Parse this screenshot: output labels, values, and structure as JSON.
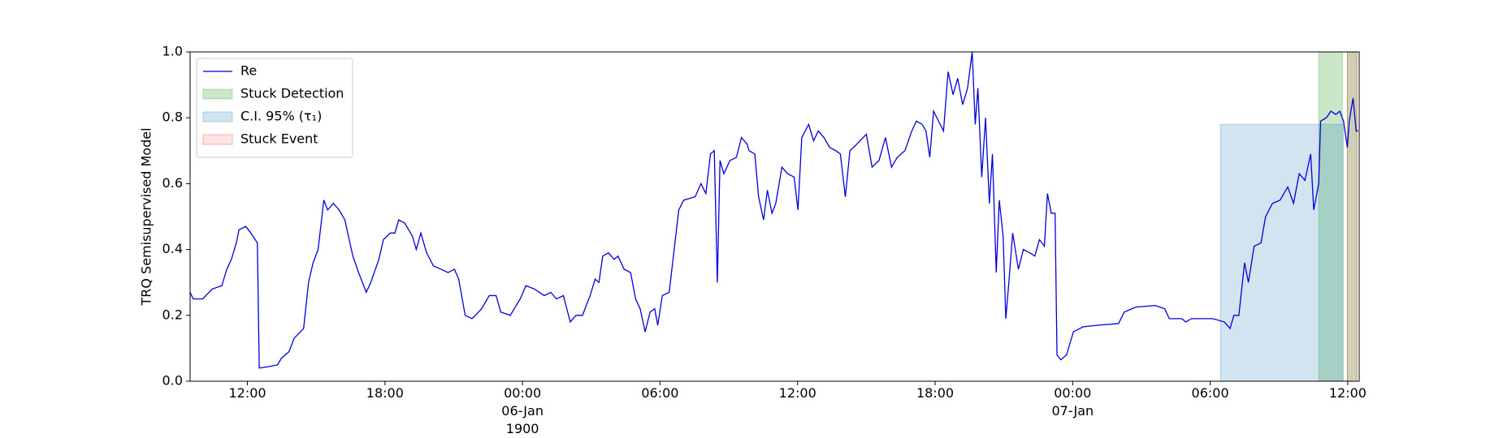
{
  "chart_data": {
    "type": "line",
    "ylabel": "TRQ Semisupervised Model",
    "xlim": [
      "1900-01-05T09:30",
      "1900-01-07T12:30"
    ],
    "ylim": [
      0,
      1
    ],
    "yticks": [
      {
        "value": 0,
        "label": "0.0"
      },
      0.2,
      0.4,
      0.6,
      0.8,
      {
        "value": 1,
        "label": "1.0"
      }
    ],
    "xticks": [
      {
        "value": "1900-01-05T12:00",
        "label": "12:00"
      },
      {
        "value": "1900-01-05T18:00",
        "label": "18:00"
      },
      {
        "value": "1900-01-06T00:00",
        "label": "00:00\n06-Jan\n1900"
      },
      {
        "value": "1900-01-06T06:00",
        "label": "06:00"
      },
      {
        "value": "1900-01-06T12:00",
        "label": "12:00"
      },
      {
        "value": "1900-01-06T18:00",
        "label": "18:00"
      },
      {
        "value": "1900-01-07T00:00",
        "label": "00:00\n07-Jan"
      },
      {
        "value": "1900-01-07T06:00",
        "label": "06:00"
      },
      {
        "value": "1900-01-07T12:00",
        "label": "12:00"
      }
    ],
    "legend": "upper left",
    "x": [
      "1900-01-05T09:30",
      "1900-01-05T09:38",
      "1900-01-05T10:03",
      "1900-01-05T10:28",
      "1900-01-05T10:53",
      "1900-01-05T11:06",
      "1900-01-05T11:18",
      "1900-01-05T11:31",
      "1900-01-05T11:38",
      "1900-01-05T11:56",
      "1900-01-05T12:09",
      "1900-01-05T12:26",
      "1900-01-05T12:31",
      "1900-01-05T12:59",
      "1900-01-05T13:19",
      "1900-01-05T13:29",
      "1900-01-05T13:49",
      "1900-01-05T14:02",
      "1900-01-05T14:27",
      "1900-01-05T14:40",
      "1900-01-05T14:52",
      "1900-01-05T15:05",
      "1900-01-05T15:20",
      "1900-01-05T15:30",
      "1900-01-05T15:45",
      "1900-01-05T16:00",
      "1900-01-05T16:15",
      "1900-01-05T16:36",
      "1900-01-05T16:51",
      "1900-01-05T17:11",
      "1900-01-05T17:23",
      "1900-01-05T17:44",
      "1900-01-05T17:56",
      "1900-01-05T18:14",
      "1900-01-05T18:26",
      "1900-01-05T18:36",
      "1900-01-05T18:52",
      "1900-01-05T19:12",
      "1900-01-05T19:22",
      "1900-01-05T19:34",
      "1900-01-05T19:49",
      "1900-01-05T20:07",
      "1900-01-05T20:27",
      "1900-01-05T20:45",
      "1900-01-05T21:02",
      "1900-01-05T21:13",
      "1900-01-05T21:30",
      "1900-01-05T21:48",
      "1900-01-05T22:13",
      "1900-01-05T22:33",
      "1900-01-05T22:51",
      "1900-01-05T23:03",
      "1900-01-05T23:28",
      "1900-01-05T23:54",
      "1900-01-06T00:09",
      "1900-01-06T00:31",
      "1900-01-06T00:57",
      "1900-01-06T01:14",
      "1900-01-06T01:29",
      "1900-01-06T01:47",
      "1900-01-06T02:05",
      "1900-01-06T02:20",
      "1900-01-06T02:37",
      "1900-01-06T02:57",
      "1900-01-06T03:10",
      "1900-01-06T03:20",
      "1900-01-06T03:30",
      "1900-01-06T03:45",
      "1900-01-06T04:00",
      "1900-01-06T04:10",
      "1900-01-06T04:26",
      "1900-01-06T04:43",
      "1900-01-06T04:56",
      "1900-01-06T05:08",
      "1900-01-06T05:21",
      "1900-01-06T05:34",
      "1900-01-06T05:46",
      "1900-01-06T05:54",
      "1900-01-06T06:06",
      "1900-01-06T06:24",
      "1900-01-06T06:37",
      "1900-01-06T06:49",
      "1900-01-06T07:02",
      "1900-01-06T07:32",
      "1900-01-06T07:47",
      "1900-01-06T08:00",
      "1900-01-06T08:12",
      "1900-01-06T08:22",
      "1900-01-06T08:30",
      "1900-01-06T08:37",
      "1900-01-06T08:47",
      "1900-01-06T09:03",
      "1900-01-06T09:20",
      "1900-01-06T09:33",
      "1900-01-06T09:48",
      "1900-01-06T09:53",
      "1900-01-06T10:08",
      "1900-01-06T10:18",
      "1900-01-06T10:31",
      "1900-01-06T10:41",
      "1900-01-06T10:53",
      "1900-01-06T11:03",
      "1900-01-06T11:19",
      "1900-01-06T11:34",
      "1900-01-06T11:51",
      "1900-01-06T12:01",
      "1900-01-06T12:11",
      "1900-01-06T12:29",
      "1900-01-06T12:42",
      "1900-01-06T12:54",
      "1900-01-06T13:09",
      "1900-01-06T13:24",
      "1900-01-06T13:40",
      "1900-01-06T13:52",
      "1900-01-06T14:05",
      "1900-01-06T14:17",
      "1900-01-06T14:35",
      "1900-01-06T15:00",
      "1900-01-06T15:15",
      "1900-01-06T15:33",
      "1900-01-06T15:50",
      "1900-01-06T16:06",
      "1900-01-06T16:21",
      "1900-01-06T16:41",
      "1900-01-06T16:59",
      "1900-01-06T17:11",
      "1900-01-06T17:26",
      "1900-01-06T17:36",
      "1900-01-06T17:46",
      "1900-01-06T17:56",
      "1900-01-06T18:09",
      "1900-01-06T18:22",
      "1900-01-06T18:34",
      "1900-01-06T18:47",
      "1900-01-06T18:59",
      "1900-01-06T19:12",
      "1900-01-06T19:25",
      "1900-01-06T19:37",
      "1900-01-06T19:45",
      "1900-01-06T19:52",
      "1900-01-06T20:02",
      "1900-01-06T20:12",
      "1900-01-06T20:22",
      "1900-01-06T20:30",
      "1900-01-06T20:40",
      "1900-01-06T20:48",
      "1900-01-06T20:58",
      "1900-01-06T21:05",
      "1900-01-06T21:13",
      "1900-01-06T21:23",
      "1900-01-06T21:38",
      "1900-01-06T21:51",
      "1900-01-06T22:08",
      "1900-01-06T22:21",
      "1900-01-06T22:33",
      "1900-01-06T22:46",
      "1900-01-06T22:54",
      "1900-01-06T23:04",
      "1900-01-06T23:14",
      "1900-01-06T23:19",
      "1900-01-06T23:29",
      "1900-01-06T23:44",
      "1900-01-07T00:02",
      "1900-01-07T00:27",
      "1900-01-07T01:04",
      "1900-01-07T02:00",
      "1900-01-07T02:15",
      "1900-01-07T02:45",
      "1900-01-07T03:36",
      "1900-01-07T04:01",
      "1900-01-07T04:13",
      "1900-01-07T04:46",
      "1900-01-07T04:56",
      "1900-01-07T05:11",
      "1900-01-07T06:07",
      "1900-01-07T06:37",
      "1900-01-07T06:52",
      "1900-01-07T07:02",
      "1900-01-07T07:15",
      "1900-01-07T07:30",
      "1900-01-07T07:40",
      "1900-01-07T07:55",
      "1900-01-07T08:13",
      "1900-01-07T08:25",
      "1900-01-07T08:43",
      "1900-01-07T09:03",
      "1900-01-07T09:23",
      "1900-01-07T09:38",
      "1900-01-07T09:53",
      "1900-01-07T10:08",
      "1900-01-07T10:23",
      "1900-01-07T10:31",
      "1900-01-07T10:44",
      "1900-01-07T10:49",
      "1900-01-07T11:04",
      "1900-01-07T11:16",
      "1900-01-07T11:29",
      "1900-01-07T11:39",
      "1900-01-07T11:49",
      "1900-01-07T11:59",
      "1900-01-07T12:04",
      "1900-01-07T12:14",
      "1900-01-07T12:22",
      "1900-01-07T12:27"
    ],
    "series": [
      {
        "name": "Re",
        "color": "#0000dd",
        "values": [
          0.27,
          0.25,
          0.25,
          0.28,
          0.29,
          0.34,
          0.37,
          0.42,
          0.46,
          0.47,
          0.45,
          0.42,
          0.04,
          0.045,
          0.05,
          0.07,
          0.09,
          0.13,
          0.16,
          0.3,
          0.36,
          0.4,
          0.55,
          0.52,
          0.54,
          0.52,
          0.49,
          0.38,
          0.33,
          0.27,
          0.3,
          0.37,
          0.43,
          0.45,
          0.45,
          0.49,
          0.48,
          0.44,
          0.4,
          0.45,
          0.39,
          0.35,
          0.34,
          0.33,
          0.34,
          0.31,
          0.2,
          0.19,
          0.22,
          0.26,
          0.26,
          0.21,
          0.2,
          0.25,
          0.29,
          0.28,
          0.26,
          0.27,
          0.25,
          0.26,
          0.18,
          0.2,
          0.2,
          0.26,
          0.31,
          0.3,
          0.38,
          0.39,
          0.37,
          0.38,
          0.34,
          0.33,
          0.25,
          0.22,
          0.15,
          0.21,
          0.22,
          0.17,
          0.26,
          0.27,
          0.4,
          0.52,
          0.55,
          0.56,
          0.6,
          0.57,
          0.69,
          0.7,
          0.3,
          0.67,
          0.63,
          0.67,
          0.68,
          0.74,
          0.72,
          0.7,
          0.69,
          0.56,
          0.49,
          0.58,
          0.51,
          0.54,
          0.65,
          0.63,
          0.62,
          0.52,
          0.74,
          0.78,
          0.73,
          0.76,
          0.74,
          0.71,
          0.7,
          0.69,
          0.56,
          0.7,
          0.72,
          0.75,
          0.65,
          0.67,
          0.74,
          0.65,
          0.68,
          0.7,
          0.76,
          0.79,
          0.78,
          0.76,
          0.68,
          0.82,
          0.79,
          0.76,
          0.94,
          0.87,
          0.92,
          0.84,
          0.89,
          1.0,
          0.78,
          0.89,
          0.62,
          0.8,
          0.54,
          0.69,
          0.33,
          0.55,
          0.44,
          0.19,
          0.3,
          0.45,
          0.34,
          0.4,
          0.39,
          0.38,
          0.43,
          0.41,
          0.57,
          0.51,
          0.51,
          0.08,
          0.065,
          0.08,
          0.15,
          0.165,
          0.17,
          0.175,
          0.21,
          0.225,
          0.23,
          0.22,
          0.19,
          0.19,
          0.18,
          0.19,
          0.19,
          0.18,
          0.16,
          0.2,
          0.2,
          0.36,
          0.3,
          0.41,
          0.42,
          0.5,
          0.54,
          0.55,
          0.59,
          0.54,
          0.63,
          0.61,
          0.69,
          0.52,
          0.6,
          0.79,
          0.8,
          0.82,
          0.81,
          0.82,
          0.79,
          0.71,
          0.79,
          0.86,
          0.76,
          0.76
        ]
      }
    ],
    "spans": [
      {
        "name": "Stuck Detection",
        "color": "#2ca02c",
        "regions": [
          {
            "start": "1900-01-07T10:44",
            "end": "1900-01-07T11:46"
          },
          {
            "start": "1900-01-07T11:59",
            "end": "1900-01-07T12:24"
          }
        ]
      },
      {
        "name": "C.I. 95% (τ₁)",
        "color": "#1f77b4",
        "regions": [
          {
            "start": "1900-01-07T06:27",
            "end": "1900-01-07T11:49",
            "top": 0.78
          }
        ]
      },
      {
        "name": "Stuck Event",
        "color": "#ff0000",
        "regions": [
          {
            "start": "1900-01-07T11:59",
            "end": "1900-01-07T12:24"
          }
        ]
      }
    ]
  }
}
